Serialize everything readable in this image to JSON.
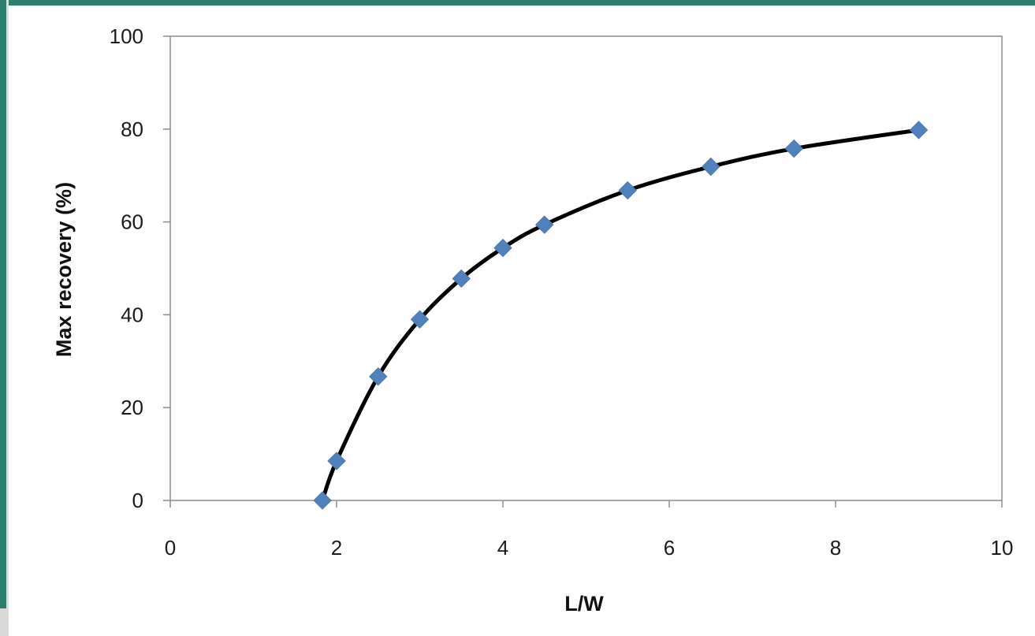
{
  "chart_data": {
    "type": "line",
    "title": "",
    "xlabel": "L/W",
    "ylabel": "Max recovery (%)",
    "xlim": [
      0,
      10
    ],
    "ylim": [
      0,
      100
    ],
    "xticks": [
      "0",
      "2",
      "4",
      "6",
      "8",
      "10"
    ],
    "yticks": [
      "0",
      "20",
      "40",
      "60",
      "80",
      "100"
    ],
    "grid": false,
    "legend": "none",
    "series": [
      {
        "x": [
          1.83,
          2.0,
          2.5,
          3.0,
          3.5,
          4.0,
          4.5,
          5.5,
          6.5,
          7.5,
          9.0
        ],
        "y": [
          0,
          8.5,
          26.7,
          39.0,
          47.8,
          54.4,
          59.4,
          66.8,
          71.9,
          75.8,
          79.8
        ],
        "line_color": "#000000",
        "marker": "diamond",
        "marker_color": "#4f81bd"
      }
    ]
  }
}
